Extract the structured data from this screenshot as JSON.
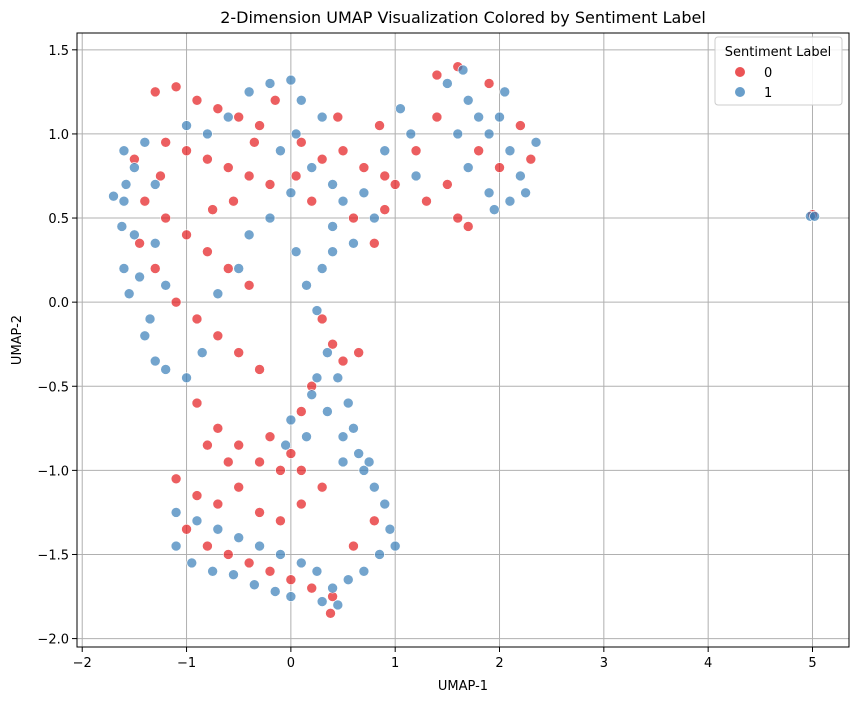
{
  "chart_data": {
    "type": "scatter",
    "title": "2-Dimension UMAP Visualization Colored by Sentiment Label",
    "xlabel": "UMAP-1",
    "ylabel": "UMAP-2",
    "xlim": [
      -2.05,
      5.35
    ],
    "ylim": [
      -2.05,
      1.6
    ],
    "x_ticks": [
      -2,
      -1,
      0,
      1,
      2,
      3,
      4,
      5
    ],
    "y_ticks": [
      -2.0,
      -1.5,
      -1.0,
      -0.5,
      0.0,
      0.5,
      1.0,
      1.5
    ],
    "x_tick_labels": [
      "−2",
      "−1",
      "0",
      "1",
      "2",
      "3",
      "4",
      "5"
    ],
    "y_tick_labels": [
      "−2.0",
      "−1.5",
      "−1.0",
      "−0.5",
      "0.0",
      "0.5",
      "1.0",
      "1.5"
    ],
    "grid": true,
    "legend": {
      "title": "Sentiment Label",
      "position": "top-right",
      "entries": [
        {
          "label": "0",
          "color": "#e41a1c"
        },
        {
          "label": "1",
          "color": "#377eb8"
        }
      ]
    },
    "series": [
      {
        "name": "0",
        "color": "#e41a1c",
        "points": [
          [
            -1.3,
            1.25
          ],
          [
            -1.1,
            1.28
          ],
          [
            -0.9,
            1.2
          ],
          [
            -0.7,
            1.15
          ],
          [
            -0.5,
            1.1
          ],
          [
            -0.3,
            1.05
          ],
          [
            -1.2,
            0.95
          ],
          [
            -1.0,
            0.9
          ],
          [
            -0.8,
            0.85
          ],
          [
            -0.6,
            0.8
          ],
          [
            -0.4,
            0.75
          ],
          [
            -0.2,
            0.7
          ],
          [
            -1.4,
            0.6
          ],
          [
            -1.2,
            0.5
          ],
          [
            -1.0,
            0.4
          ],
          [
            -0.8,
            0.3
          ],
          [
            -0.6,
            0.2
          ],
          [
            -0.4,
            0.1
          ],
          [
            -1.3,
            0.2
          ],
          [
            -1.1,
            0.0
          ],
          [
            -0.9,
            -0.1
          ],
          [
            -0.7,
            -0.2
          ],
          [
            -0.5,
            -0.3
          ],
          [
            -0.3,
            -0.4
          ],
          [
            0.1,
            0.95
          ],
          [
            0.3,
            0.85
          ],
          [
            0.5,
            0.9
          ],
          [
            0.7,
            0.8
          ],
          [
            0.9,
            0.75
          ],
          [
            0.2,
            0.6
          ],
          [
            0.6,
            0.5
          ],
          [
            0.8,
            0.35
          ],
          [
            0.9,
            0.55
          ],
          [
            1.0,
            0.7
          ],
          [
            1.2,
            0.9
          ],
          [
            1.4,
            1.1
          ],
          [
            1.5,
            0.7
          ],
          [
            1.6,
            0.5
          ],
          [
            1.4,
            1.35
          ],
          [
            1.6,
            1.4
          ],
          [
            1.8,
            0.9
          ],
          [
            2.0,
            0.8
          ],
          [
            0.3,
            -0.1
          ],
          [
            0.4,
            -0.25
          ],
          [
            0.5,
            -0.35
          ],
          [
            0.2,
            -0.5
          ],
          [
            0.1,
            -0.65
          ],
          [
            -0.9,
            -0.6
          ],
          [
            -0.7,
            -0.75
          ],
          [
            -0.5,
            -0.85
          ],
          [
            -0.3,
            -0.95
          ],
          [
            -0.1,
            -1.0
          ],
          [
            -1.1,
            -1.05
          ],
          [
            -0.9,
            -1.15
          ],
          [
            -0.7,
            -1.2
          ],
          [
            -0.5,
            -1.1
          ],
          [
            -0.3,
            -1.25
          ],
          [
            -0.1,
            -1.3
          ],
          [
            0.1,
            -1.2
          ],
          [
            0.3,
            -1.1
          ],
          [
            -1.0,
            -1.35
          ],
          [
            -0.8,
            -1.45
          ],
          [
            -0.6,
            -1.5
          ],
          [
            -0.4,
            -1.55
          ],
          [
            -0.2,
            -1.6
          ],
          [
            0.0,
            -1.65
          ],
          [
            0.2,
            -1.7
          ],
          [
            0.4,
            -1.75
          ],
          [
            0.38,
            -1.85
          ],
          [
            0.6,
            -1.45
          ],
          [
            0.8,
            -1.3
          ],
          [
            -0.2,
            -0.8
          ],
          [
            0.0,
            -0.9
          ],
          [
            0.1,
            -1.0
          ],
          [
            -0.6,
            -0.95
          ],
          [
            -0.8,
            -0.85
          ],
          [
            0.65,
            -0.3
          ],
          [
            -0.15,
            1.2
          ],
          [
            -0.35,
            0.95
          ],
          [
            0.05,
            0.75
          ],
          [
            0.45,
            1.1
          ],
          [
            0.85,
            1.05
          ],
          [
            -1.5,
            0.85
          ],
          [
            -1.45,
            0.35
          ],
          [
            -1.25,
            0.75
          ],
          [
            -0.75,
            0.55
          ],
          [
            -0.55,
            0.6
          ],
          [
            1.7,
            0.45
          ],
          [
            1.3,
            0.6
          ],
          [
            2.2,
            1.05
          ],
          [
            2.3,
            0.85
          ],
          [
            1.9,
            1.3
          ],
          [
            5.0,
            0.52
          ]
        ]
      },
      {
        "name": "1",
        "color": "#377eb8",
        "points": [
          [
            -1.6,
            0.9
          ],
          [
            -1.5,
            0.8
          ],
          [
            -1.6,
            0.6
          ],
          [
            -1.5,
            0.4
          ],
          [
            -1.6,
            0.2
          ],
          [
            -1.55,
            0.05
          ],
          [
            -1.4,
            0.95
          ],
          [
            -1.3,
            0.7
          ],
          [
            -1.3,
            0.35
          ],
          [
            -1.2,
            0.1
          ],
          [
            -1.35,
            -0.1
          ],
          [
            -1.3,
            -0.35
          ],
          [
            -1.0,
            1.05
          ],
          [
            -0.8,
            1.0
          ],
          [
            -0.6,
            1.1
          ],
          [
            -0.4,
            1.25
          ],
          [
            -0.2,
            1.3
          ],
          [
            0.0,
            1.32
          ],
          [
            0.1,
            1.2
          ],
          [
            0.3,
            1.1
          ],
          [
            0.2,
            0.8
          ],
          [
            0.0,
            0.65
          ],
          [
            -0.2,
            0.5
          ],
          [
            -0.4,
            0.4
          ],
          [
            0.4,
            0.7
          ],
          [
            0.5,
            0.6
          ],
          [
            0.7,
            0.65
          ],
          [
            0.8,
            0.5
          ],
          [
            0.4,
            0.3
          ],
          [
            0.3,
            0.2
          ],
          [
            1.5,
            1.3
          ],
          [
            1.7,
            1.2
          ],
          [
            1.8,
            1.1
          ],
          [
            1.9,
            1.0
          ],
          [
            2.0,
            1.1
          ],
          [
            2.1,
            0.9
          ],
          [
            2.2,
            0.75
          ],
          [
            2.1,
            0.6
          ],
          [
            1.9,
            0.65
          ],
          [
            1.7,
            0.8
          ],
          [
            1.6,
            1.0
          ],
          [
            2.35,
            0.95
          ],
          [
            -1.7,
            0.63
          ],
          [
            -1.62,
            0.45
          ],
          [
            -1.58,
            0.7
          ],
          [
            -1.45,
            0.15
          ],
          [
            -1.4,
            -0.2
          ],
          [
            -1.2,
            -0.4
          ],
          [
            -1.0,
            -0.45
          ],
          [
            -0.85,
            -0.3
          ],
          [
            -0.7,
            0.05
          ],
          [
            -0.5,
            0.2
          ],
          [
            0.05,
            0.3
          ],
          [
            0.15,
            0.1
          ],
          [
            0.25,
            -0.05
          ],
          [
            0.35,
            -0.3
          ],
          [
            0.45,
            -0.45
          ],
          [
            0.55,
            -0.6
          ],
          [
            0.6,
            -0.75
          ],
          [
            0.65,
            -0.9
          ],
          [
            0.7,
            -1.0
          ],
          [
            0.8,
            -1.1
          ],
          [
            0.9,
            -1.2
          ],
          [
            0.95,
            -1.35
          ],
          [
            1.0,
            -1.45
          ],
          [
            0.85,
            -1.5
          ],
          [
            0.7,
            -1.6
          ],
          [
            0.55,
            -1.65
          ],
          [
            0.4,
            -1.7
          ],
          [
            0.25,
            -1.6
          ],
          [
            0.1,
            -1.55
          ],
          [
            -0.1,
            -1.5
          ],
          [
            -0.3,
            -1.45
          ],
          [
            -0.5,
            -1.4
          ],
          [
            -0.7,
            -1.35
          ],
          [
            -0.9,
            -1.3
          ],
          [
            -1.1,
            -1.25
          ],
          [
            -1.1,
            -1.45
          ],
          [
            -0.95,
            -1.55
          ],
          [
            -0.75,
            -1.6
          ],
          [
            -0.55,
            -1.62
          ],
          [
            -0.35,
            -1.68
          ],
          [
            -0.15,
            -1.72
          ],
          [
            0.0,
            -1.75
          ],
          [
            0.3,
            -1.78
          ],
          [
            0.45,
            -1.8
          ],
          [
            0.5,
            -0.8
          ],
          [
            0.35,
            -0.65
          ],
          [
            0.2,
            -0.55
          ],
          [
            0.25,
            -0.45
          ],
          [
            0.5,
            -0.95
          ],
          [
            0.75,
            -0.95
          ],
          [
            0.0,
            -0.7
          ],
          [
            -0.05,
            -0.85
          ],
          [
            0.15,
            -0.8
          ],
          [
            0.05,
            1.0
          ],
          [
            -0.1,
            0.9
          ],
          [
            0.4,
            0.45
          ],
          [
            0.6,
            0.35
          ],
          [
            0.9,
            0.9
          ],
          [
            1.05,
            1.15
          ],
          [
            1.2,
            0.75
          ],
          [
            1.15,
            1.0
          ],
          [
            1.95,
            0.55
          ],
          [
            2.25,
            0.65
          ],
          [
            2.05,
            1.25
          ],
          [
            1.65,
            1.38
          ],
          [
            4.98,
            0.51
          ],
          [
            5.02,
            0.51
          ]
        ]
      }
    ]
  }
}
